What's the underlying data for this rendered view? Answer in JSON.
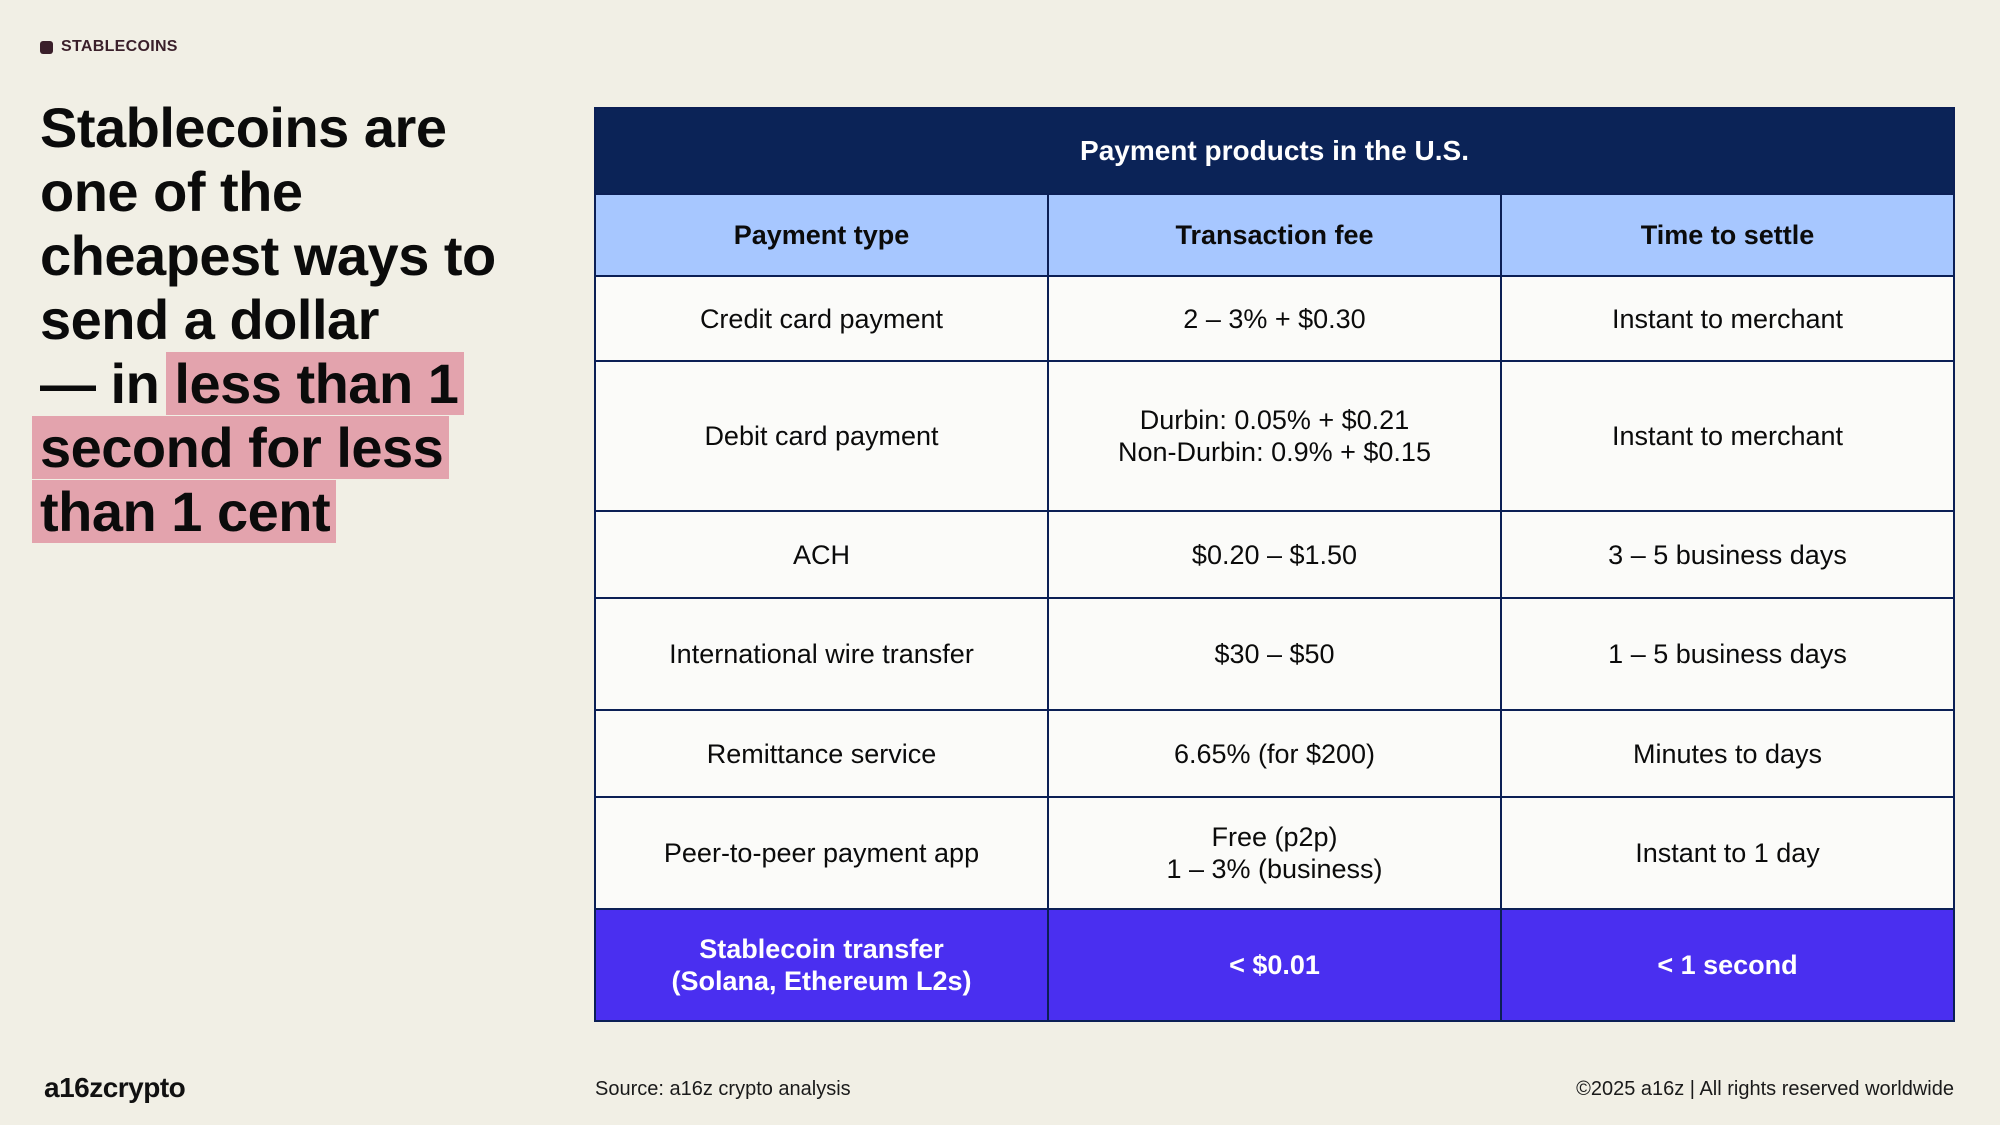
{
  "tag": "STABLECOINS",
  "headline": {
    "line1": "Stablecoins are",
    "line2": "one of the",
    "line3": "cheapest ways to",
    "line4": "send a dollar",
    "line5_plain": "— in ",
    "line5_hl": "less than 1",
    "line6_hl": "second for less",
    "line7_hl": "than 1 cent"
  },
  "table": {
    "title": "Payment products in the U.S.",
    "columns": [
      "Payment type",
      "Transaction fee",
      "Time to settle"
    ],
    "rows": [
      {
        "type": [
          "Credit card payment"
        ],
        "fee": [
          "2 – 3% + $0.30"
        ],
        "settle": [
          "Instant to merchant"
        ]
      },
      {
        "type": [
          "Debit card payment"
        ],
        "fee": [
          "Durbin: 0.05% + $0.21",
          "Non-Durbin: 0.9% + $0.15"
        ],
        "settle": [
          "Instant to merchant"
        ]
      },
      {
        "type": [
          "ACH"
        ],
        "fee": [
          "$0.20 – $1.50"
        ],
        "settle": [
          "3 – 5 business days"
        ]
      },
      {
        "type": [
          "International wire transfer"
        ],
        "fee": [
          "$30 – $50"
        ],
        "settle": [
          "1 – 5 business days"
        ]
      },
      {
        "type": [
          "Remittance service"
        ],
        "fee": [
          "6.65% (for $200)"
        ],
        "settle": [
          "Minutes to days"
        ]
      },
      {
        "type": [
          "Peer-to-peer payment app"
        ],
        "fee": [
          "Free (p2p)",
          "1 – 3% (business)"
        ],
        "settle": [
          "Instant to 1 day"
        ]
      }
    ],
    "highlight_row": {
      "type": [
        "Stablecoin transfer",
        "(Solana, Ethereum L2s)"
      ],
      "fee": [
        "< $0.01"
      ],
      "settle": [
        "< 1 second"
      ]
    }
  },
  "footer": {
    "logo": "a16zcrypto",
    "source": "Source: a16z crypto analysis",
    "copyright": "©2025 a16z | All rights reserved worldwide"
  },
  "colors": {
    "background": "#f1efe5",
    "table_title_bg": "#0b2357",
    "table_header_bg": "#a7c7ff",
    "highlight_row_bg": "#4a2ff0",
    "headline_highlight": "#e3a3ad"
  }
}
